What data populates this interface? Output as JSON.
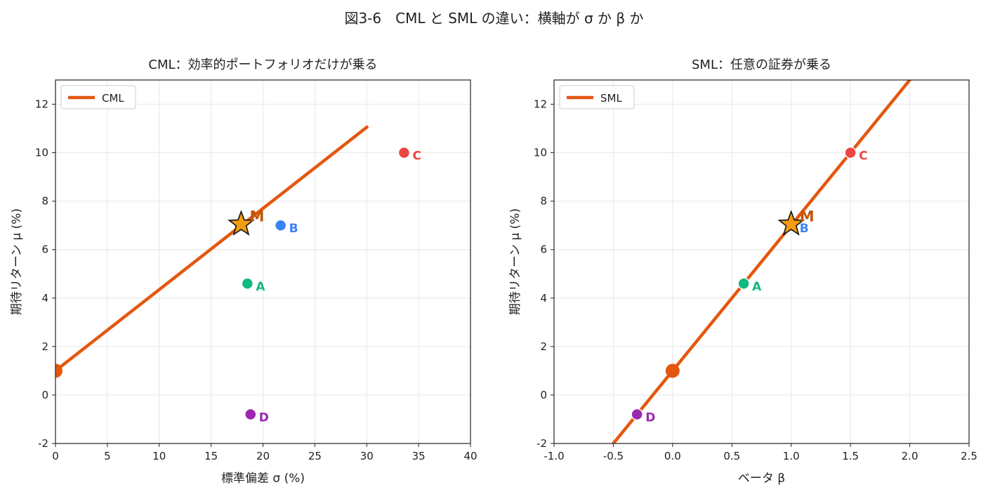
{
  "figure_title": "図3-6　CML と SML の違い：横軸が σ か β か",
  "chart_data": [
    {
      "type": "line",
      "title": "CML：効率的ポートフォリオだけが乗る",
      "xlabel": "標準偏差 σ (%)",
      "ylabel": "期待リターン μ (%)",
      "xlim": [
        0,
        40
      ],
      "ylim": [
        -2,
        13
      ],
      "xticks": [
        0,
        5,
        10,
        15,
        20,
        25,
        30,
        35,
        40
      ],
      "yticks": [
        -2,
        0,
        2,
        4,
        6,
        8,
        10,
        12
      ],
      "grid": true,
      "legend_position": "top-left",
      "series": [
        {
          "name": "CML",
          "color": "#e4570f",
          "x": [
            0,
            30
          ],
          "y": [
            1.0,
            11.05
          ]
        }
      ],
      "risk_free": {
        "x": 0,
        "y": 1.0,
        "color": "#e4570f"
      },
      "market": {
        "label": "M",
        "x": 17.9,
        "y": 7.05,
        "color": "#f39c12",
        "label_color": "#c0570a"
      },
      "points": [
        {
          "label": "A",
          "x": 18.5,
          "y": 4.6,
          "color": "#10b981"
        },
        {
          "label": "B",
          "x": 21.7,
          "y": 7.0,
          "color": "#3b82f6"
        },
        {
          "label": "C",
          "x": 33.6,
          "y": 10.0,
          "color": "#ef4444"
        },
        {
          "label": "D",
          "x": 18.8,
          "y": -0.8,
          "color": "#9c27b0"
        }
      ]
    },
    {
      "type": "line",
      "title": "SML：任意の証券が乗る",
      "xlabel": "ベータ β",
      "ylabel": "期待リターン μ (%)",
      "xlim": [
        -1.0,
        2.5
      ],
      "ylim": [
        -2,
        13
      ],
      "xticks": [
        -1.0,
        -0.5,
        0.0,
        0.5,
        1.0,
        1.5,
        2.0,
        2.5
      ],
      "yticks": [
        -2,
        0,
        2,
        4,
        6,
        8,
        10,
        12
      ],
      "grid": true,
      "legend_position": "top-left",
      "series": [
        {
          "name": "SML",
          "color": "#e4570f",
          "x": [
            -1.0,
            2.5
          ],
          "y": [
            -5.0,
            16.0
          ]
        }
      ],
      "risk_free": {
        "x": 0,
        "y": 1.0,
        "color": "#e4570f"
      },
      "market": {
        "label": "M",
        "x": 1.0,
        "y": 7.05,
        "color": "#f39c12",
        "label_color": "#c0570a"
      },
      "points": [
        {
          "label": "A",
          "x": 0.6,
          "y": 4.6,
          "color": "#10b981"
        },
        {
          "label": "B",
          "x": 1.0,
          "y": 7.0,
          "color": "#3b82f6"
        },
        {
          "label": "C",
          "x": 1.5,
          "y": 10.0,
          "color": "#ef4444"
        },
        {
          "label": "D",
          "x": -0.3,
          "y": -0.8,
          "color": "#9c27b0"
        }
      ]
    }
  ]
}
